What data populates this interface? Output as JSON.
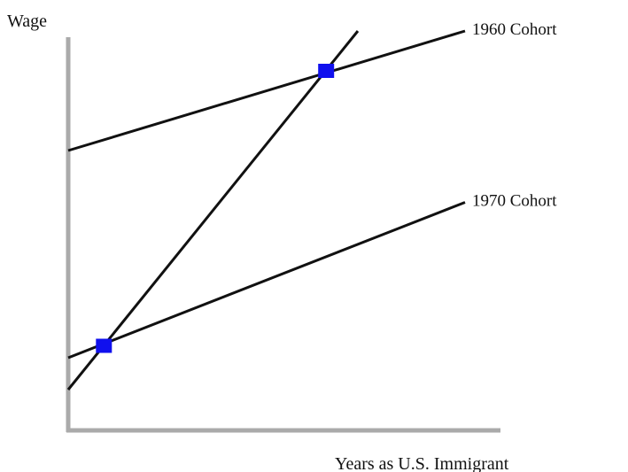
{
  "chart_data": {
    "type": "line",
    "title": "",
    "ylabel": "Wage",
    "xlabel": "Years as U.S. Immigrant",
    "xlim": [
      0,
      100
    ],
    "ylim": [
      0,
      100
    ],
    "grid": false,
    "legend": "none",
    "series": [
      {
        "name": "1960 Cohort",
        "x": [
          0,
          100
        ],
        "y": [
          70,
          100
        ]
      },
      {
        "name": "1970 Cohort",
        "x": [
          0,
          100
        ],
        "y": [
          18,
          57
        ]
      },
      {
        "x": [
          0,
          73
        ],
        "y": [
          10,
          100
        ]
      }
    ],
    "markers": [
      {
        "x": 9,
        "y": 21
      },
      {
        "x": 65,
        "y": 90
      }
    ],
    "colors": {
      "axis": "#aaaaaa",
      "line": "#111111",
      "marker": "#1010ee"
    }
  }
}
